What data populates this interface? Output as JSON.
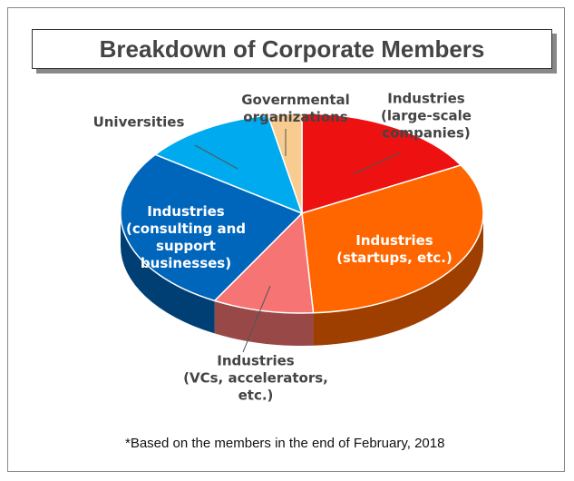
{
  "chart_data": {
    "type": "pie",
    "title": "Breakdown of Corporate Members",
    "categories": [
      "Industries\n(large-scale\ncompanies)",
      "Industries\n(startups, etc.)",
      "Industries\n(VCs, accelerators,\netc.)",
      "Industries\n(consulting and\nsupport\nbusinesses)",
      "Universities",
      "Governmental\norganizations"
    ],
    "values": [
      17,
      32,
      9,
      27,
      12,
      3
    ],
    "colors": [
      "#ee1111",
      "#ff6600",
      "#f77474",
      "#0066bb",
      "#00aaee",
      "#f8cc90"
    ],
    "note": "*Based on the members in the end of February, 2018"
  }
}
